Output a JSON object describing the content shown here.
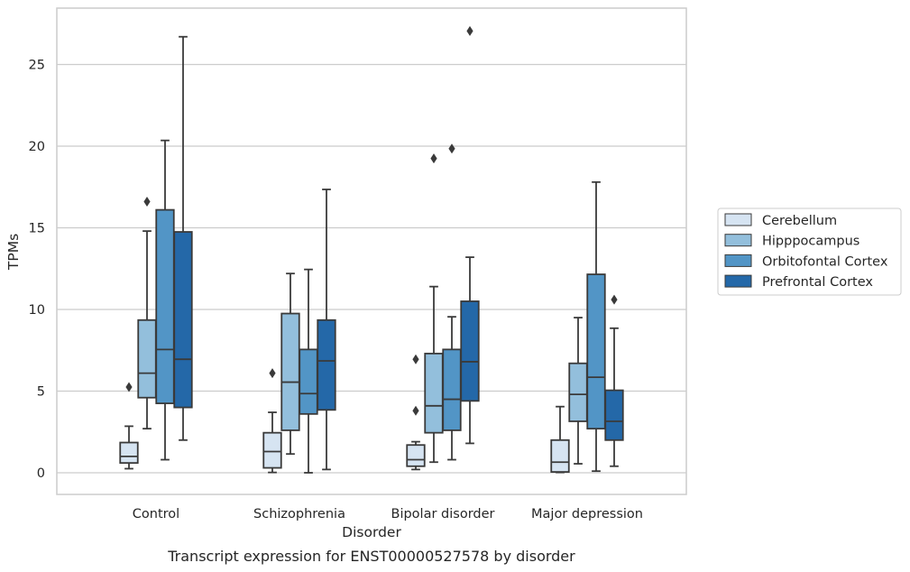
{
  "chart_data": {
    "type": "boxplot",
    "title": "",
    "caption": "Transcript expression for ENST00000527578 by disorder",
    "xlabel": "Disorder",
    "ylabel": "TPMs",
    "ylim": [
      -1.3,
      28.5
    ],
    "yticks": [
      0,
      5,
      10,
      15,
      20,
      25
    ],
    "grid": "horizontal",
    "legend_position": "right",
    "categories": [
      "Control",
      "Schizophrenia",
      "Bipolar disorder",
      "Major depression"
    ],
    "series": [
      {
        "name": "Cerebellum",
        "color": "#d6e4f2",
        "boxes": [
          {
            "whislo": 0.25,
            "q1": 0.6,
            "med": 1.0,
            "q3": 1.85,
            "whishi": 2.85,
            "fliers": [
              5.25
            ]
          },
          {
            "whislo": 0.02,
            "q1": 0.3,
            "med": 1.3,
            "q3": 2.45,
            "whishi": 3.7,
            "fliers": [
              6.1
            ]
          },
          {
            "whislo": 0.2,
            "q1": 0.4,
            "med": 0.8,
            "q3": 1.7,
            "whishi": 1.9,
            "fliers": [
              3.8,
              6.95
            ]
          },
          {
            "whislo": 0.02,
            "q1": 0.05,
            "med": 0.65,
            "q3": 2.0,
            "whishi": 4.05,
            "fliers": []
          }
        ]
      },
      {
        "name": "Hipppocampus",
        "color": "#93bfdc",
        "boxes": [
          {
            "whislo": 2.7,
            "q1": 4.6,
            "med": 6.1,
            "q3": 9.35,
            "whishi": 14.8,
            "fliers": [
              16.6
            ]
          },
          {
            "whislo": 1.15,
            "q1": 2.6,
            "med": 5.55,
            "q3": 9.75,
            "whishi": 12.2,
            "fliers": []
          },
          {
            "whislo": 0.65,
            "q1": 2.45,
            "med": 4.1,
            "q3": 7.3,
            "whishi": 11.4,
            "fliers": [
              19.25
            ]
          },
          {
            "whislo": 0.55,
            "q1": 3.15,
            "med": 4.8,
            "q3": 6.7,
            "whishi": 9.5,
            "fliers": []
          }
        ]
      },
      {
        "name": "Orbitofontal Cortex",
        "color": "#5295c6",
        "boxes": [
          {
            "whislo": 0.8,
            "q1": 4.25,
            "med": 7.55,
            "q3": 16.1,
            "whishi": 20.35,
            "fliers": []
          },
          {
            "whislo": 0.0,
            "q1": 3.6,
            "med": 4.85,
            "q3": 7.55,
            "whishi": 12.45,
            "fliers": []
          },
          {
            "whislo": 0.8,
            "q1": 2.6,
            "med": 4.5,
            "q3": 7.55,
            "whishi": 9.55,
            "fliers": [
              19.85
            ]
          },
          {
            "whislo": 0.1,
            "q1": 2.7,
            "med": 5.85,
            "q3": 12.15,
            "whishi": 17.8,
            "fliers": []
          }
        ]
      },
      {
        "name": "Prefrontal Cortex",
        "color": "#2468a8",
        "boxes": [
          {
            "whislo": 2.0,
            "q1": 4.0,
            "med": 6.95,
            "q3": 14.75,
            "whishi": 26.7,
            "fliers": []
          },
          {
            "whislo": 0.2,
            "q1": 3.85,
            "med": 6.85,
            "q3": 9.35,
            "whishi": 17.35,
            "fliers": []
          },
          {
            "whislo": 1.8,
            "q1": 4.4,
            "med": 6.8,
            "q3": 10.5,
            "whishi": 13.2,
            "fliers": [
              27.05
            ]
          },
          {
            "whislo": 0.4,
            "q1": 2.0,
            "med": 3.15,
            "q3": 5.05,
            "whishi": 8.85,
            "fliers": [
              10.6
            ]
          }
        ]
      }
    ]
  }
}
